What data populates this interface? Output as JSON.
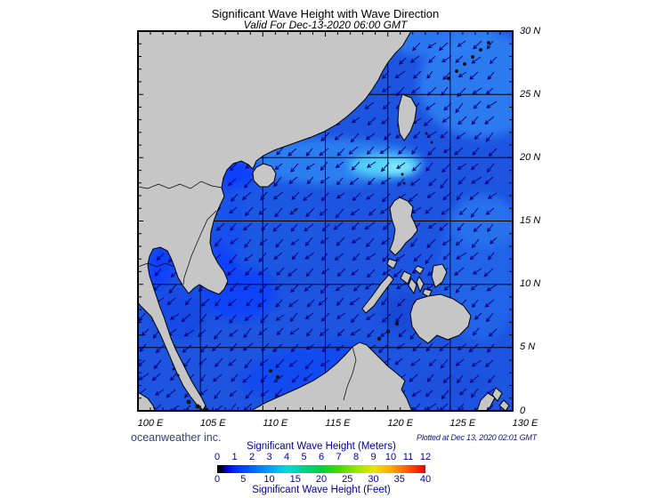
{
  "title": "Significant Wave Height with Wave Direction",
  "subtitle": "Valid For Dec-13-2020 06:00 GMT",
  "map": {
    "lat_labels": [
      "30 N",
      "25 N",
      "20 N",
      "15 N",
      "10 N",
      "5 N",
      "0"
    ],
    "lon_labels": [
      "100 E",
      "105 E",
      "110 E",
      "115 E",
      "120 E",
      "125 E",
      "130 E"
    ],
    "credit_left": "oceanweather inc.",
    "credit_right": "Plotted at Dec 13, 2020 02:01 GMT"
  },
  "colorbar": {
    "title_meters": "Significant Wave Height (Meters)",
    "title_feet": "Significant Wave Height (Feet)",
    "meters_ticks": [
      "0",
      "1",
      "2",
      "3",
      "4",
      "5",
      "6",
      "7",
      "8",
      "9",
      "10",
      "11",
      "12"
    ],
    "feet_ticks": [
      "0",
      "5",
      "10",
      "15",
      "20",
      "25",
      "30",
      "35",
      "40"
    ],
    "gradient": [
      "#000000",
      "#0000b4",
      "#0028ff",
      "#0064ff",
      "#00a0ff",
      "#00dcdc",
      "#00d28c",
      "#00d23c",
      "#46dc00",
      "#96e600",
      "#e6e600",
      "#ffaa00",
      "#ff5500",
      "#f00000"
    ]
  },
  "colors": {
    "sea": "#1d55e0",
    "land": "#c6c6c6",
    "arrow": "#00007d",
    "colorbar_text": "#0000a0",
    "credit_left": "#3c3c6e",
    "credit_right": "#16167a"
  },
  "chart_data": {
    "type": "heatmap",
    "title": "Significant Wave Height with Wave Direction",
    "valid_time": "Dec-13-2020 06:00 GMT",
    "plotted_time": "Dec 13, 2020 02:01 GMT",
    "region": {
      "lon_deg_east": [
        100,
        130
      ],
      "lat_deg_north": [
        0,
        30
      ]
    },
    "grid_interval_deg": 5,
    "scale_meters": {
      "min": 0,
      "max": 12,
      "ticks": [
        0,
        1,
        2,
        3,
        4,
        5,
        6,
        7,
        8,
        9,
        10,
        11,
        12
      ]
    },
    "scale_feet": {
      "min": 0,
      "max": 40,
      "ticks": [
        0,
        5,
        10,
        15,
        20,
        25,
        30,
        35,
        40
      ]
    },
    "wave_direction": "arrows point generally southwest (northeast monsoon swell)",
    "observed_range_meters": "roughly 1-4 m over open water, peak cyan patch near Luzon Strait (~20N 119E)"
  }
}
